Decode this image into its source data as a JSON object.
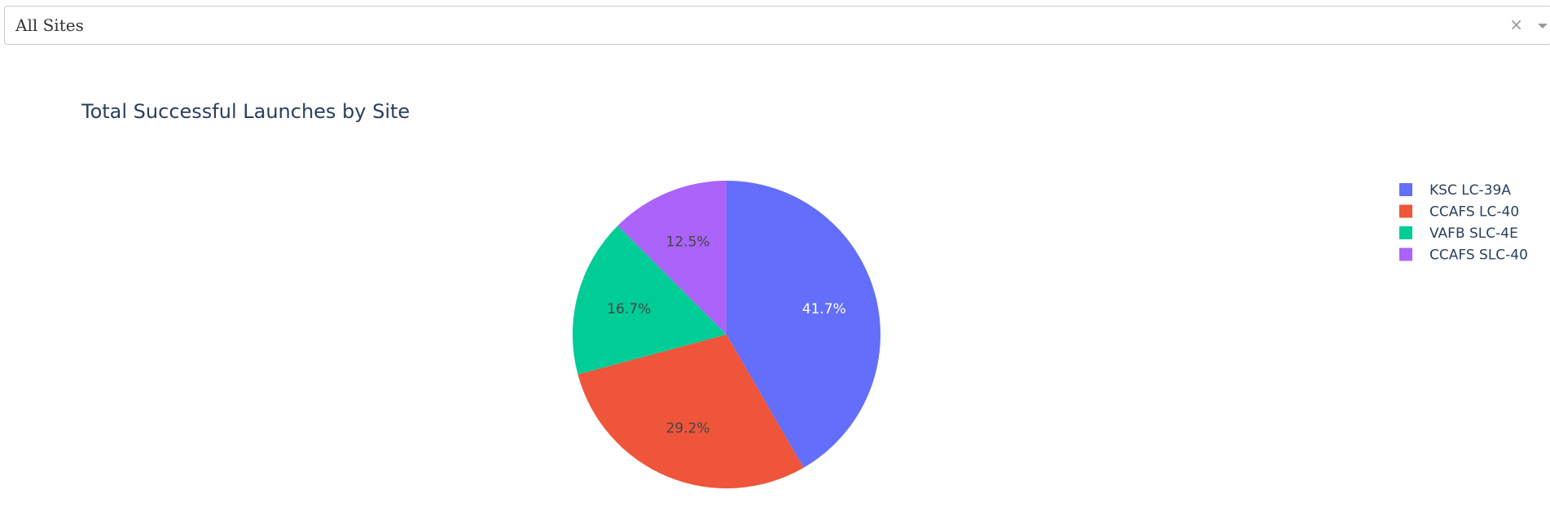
{
  "dropdown": {
    "value": "All Sites",
    "clear_symbol": "×"
  },
  "chart_data": {
    "type": "pie",
    "title": "Total Successful Launches by Site",
    "legend_position": "top-right",
    "slices": [
      {
        "label": "KSC LC-39A",
        "percent": 41.7,
        "color": "#636efa",
        "text_color": "#ffffff",
        "display": "41.7%"
      },
      {
        "label": "CCAFS LC-40",
        "percent": 29.2,
        "color": "#ef553b",
        "text_color": "#444444",
        "display": "29.2%"
      },
      {
        "label": "VAFB SLC-4E",
        "percent": 16.7,
        "color": "#00cc96",
        "text_color": "#444444",
        "display": "16.7%"
      },
      {
        "label": "CCAFS SLC-40",
        "percent": 12.5,
        "color": "#ab63fa",
        "text_color": "#444444",
        "display": "12.5%"
      }
    ],
    "legend_order": [
      "KSC LC-39A",
      "CCAFS LC-40",
      "VAFB SLC-4E",
      "CCAFS SLC-40"
    ]
  }
}
